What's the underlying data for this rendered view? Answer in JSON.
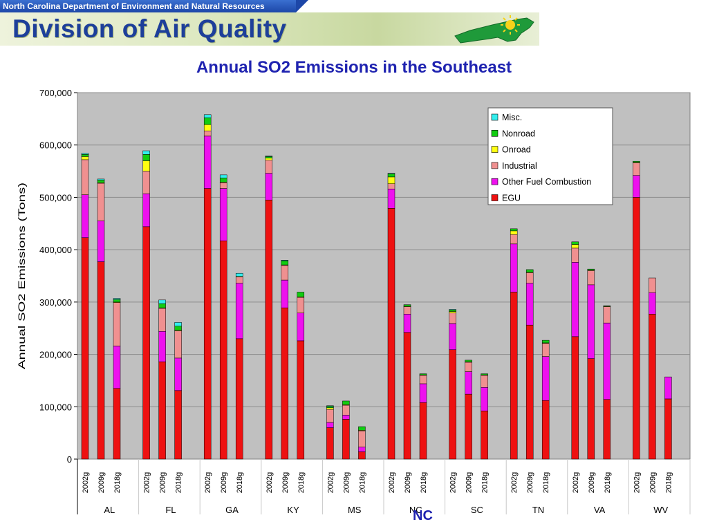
{
  "header": {
    "department": "North Carolina Department of Environment and Natural Resources",
    "division": "Division of Air Quality",
    "logo_icon": "nc-state-map-sun-icon"
  },
  "highlight_label": "NC",
  "colors": {
    "plot_bg": "#c0c0c0",
    "EGU": "#ee1111",
    "Other Fuel Combustion": "#ee11ee",
    "Industrial": "#f09090",
    "Onroad": "#ffff11",
    "Nonroad": "#11cc11",
    "Misc.": "#33eeee"
  },
  "chart_data": {
    "type": "bar",
    "stacked": true,
    "title": "Annual SO2 Emissions in the Southeast",
    "ylabel": "Annual SO2 Emissions (Tons)",
    "xlabel": "",
    "ylim": [
      0,
      700000
    ],
    "yticks": [
      0,
      100000,
      200000,
      300000,
      400000,
      500000,
      600000,
      700000
    ],
    "ytick_labels": [
      "0",
      "100,000",
      "200,000",
      "300,000",
      "400,000",
      "500,000",
      "600,000",
      "700,000"
    ],
    "grid": true,
    "legend_position": "top-right",
    "legend_order": [
      "Misc.",
      "Nonroad",
      "Onroad",
      "Industrial",
      "Other Fuel Combustion",
      "EGU"
    ],
    "years": [
      "2002",
      "2009",
      "2018"
    ],
    "year_labels": [
      "2002g",
      "2009g",
      "2018g"
    ],
    "groups": [
      "AL",
      "FL",
      "GA",
      "KY",
      "MS",
      "NC",
      "SC",
      "TN",
      "VA",
      "WV"
    ],
    "series": [
      {
        "name": "EGU",
        "values": [
          [
            423000,
            377000,
            135000
          ],
          [
            444000,
            186000,
            131000
          ],
          [
            517000,
            417000,
            230000
          ],
          [
            495000,
            289000,
            226000
          ],
          [
            60000,
            76000,
            14000
          ],
          [
            479000,
            242000,
            108000
          ],
          [
            209000,
            124000,
            92000
          ],
          [
            319000,
            256000,
            112000
          ],
          [
            234000,
            192000,
            114000
          ],
          [
            500000,
            277000,
            115000
          ]
        ]
      },
      {
        "name": "Other Fuel Combustion",
        "values": [
          [
            82000,
            78000,
            81000
          ],
          [
            63000,
            58000,
            62000
          ],
          [
            100000,
            100000,
            106000
          ],
          [
            51000,
            53000,
            53000
          ],
          [
            10000,
            8000,
            9000
          ],
          [
            37000,
            35000,
            36000
          ],
          [
            50000,
            43000,
            45000
          ],
          [
            92000,
            80000,
            84000
          ],
          [
            142000,
            141000,
            146000
          ],
          [
            42000,
            41000,
            42000
          ]
        ]
      },
      {
        "name": "Industrial",
        "values": [
          [
            67000,
            72000,
            83000
          ],
          [
            43000,
            44000,
            52000
          ],
          [
            10000,
            11000,
            12000
          ],
          [
            25000,
            28000,
            30000
          ],
          [
            25000,
            19000,
            31000
          ],
          [
            10000,
            14000,
            16000
          ],
          [
            20000,
            18000,
            23000
          ],
          [
            18000,
            20000,
            25000
          ],
          [
            27000,
            27000,
            31000
          ],
          [
            24000,
            28000,
            0
          ]
        ]
      },
      {
        "name": "Onroad",
        "values": [
          [
            6000,
            1000,
            1000
          ],
          [
            20000,
            1000,
            1000
          ],
          [
            12000,
            1000,
            1000
          ],
          [
            4000,
            1000,
            1000
          ],
          [
            3000,
            1000,
            1000
          ],
          [
            13000,
            1000,
            1000
          ],
          [
            3000,
            1000,
            1000
          ],
          [
            7000,
            1000,
            1000
          ],
          [
            7000,
            1000,
            1000
          ],
          [
            1000,
            0,
            0
          ]
        ]
      },
      {
        "name": "Nonroad",
        "values": [
          [
            4000,
            5000,
            5000
          ],
          [
            12000,
            8000,
            8000
          ],
          [
            13000,
            8000,
            0
          ],
          [
            3000,
            8000,
            9000
          ],
          [
            3000,
            7000,
            7000
          ],
          [
            6000,
            3000,
            2000
          ],
          [
            3000,
            3000,
            2000
          ],
          [
            4000,
            5000,
            5000
          ],
          [
            5000,
            2000,
            1000
          ],
          [
            2000,
            0,
            0
          ]
        ]
      },
      {
        "name": "Misc.",
        "values": [
          [
            2000,
            2000,
            2000
          ],
          [
            7000,
            7000,
            7000
          ],
          [
            6000,
            6000,
            6000
          ],
          [
            1000,
            1000,
            0
          ],
          [
            1000,
            0,
            0
          ],
          [
            1000,
            0,
            0
          ],
          [
            1000,
            0,
            0
          ],
          [
            0,
            0,
            0
          ],
          [
            0,
            0,
            0
          ],
          [
            0,
            0,
            0
          ]
        ]
      }
    ]
  }
}
